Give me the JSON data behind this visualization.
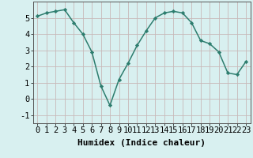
{
  "x": [
    0,
    1,
    2,
    3,
    4,
    5,
    6,
    7,
    8,
    9,
    10,
    11,
    12,
    13,
    14,
    15,
    16,
    17,
    18,
    19,
    20,
    21,
    22,
    23
  ],
  "y": [
    5.1,
    5.3,
    5.4,
    5.5,
    4.7,
    4.0,
    2.9,
    0.8,
    -0.4,
    1.2,
    2.2,
    3.3,
    4.2,
    5.0,
    5.3,
    5.4,
    5.3,
    4.7,
    3.6,
    3.4,
    2.9,
    1.6,
    1.5,
    2.3
  ],
  "line_color": "#2d7d6e",
  "marker": "D",
  "marker_size": 2.2,
  "xlabel": "Humidex (Indice chaleur)",
  "xlim": [
    -0.5,
    23.5
  ],
  "ylim": [
    -1.5,
    6.0
  ],
  "yticks": [
    -1,
    0,
    1,
    2,
    3,
    4,
    5
  ],
  "xticks": [
    0,
    1,
    2,
    3,
    4,
    5,
    6,
    7,
    8,
    9,
    10,
    11,
    12,
    13,
    14,
    15,
    16,
    17,
    18,
    19,
    20,
    21,
    22,
    23
  ],
  "xtick_labels": [
    "0",
    "1",
    "2",
    "3",
    "4",
    "5",
    "6",
    "7",
    "8",
    "9",
    "10",
    "11",
    "12",
    "13",
    "14",
    "15",
    "16",
    "17",
    "18",
    "19",
    "20",
    "21",
    "22",
    "23"
  ],
  "background_color": "#d8f0f0",
  "grid_color": "#c8dede",
  "tick_fontsize": 7.5,
  "xlabel_fontsize": 8,
  "line_width": 1.1
}
